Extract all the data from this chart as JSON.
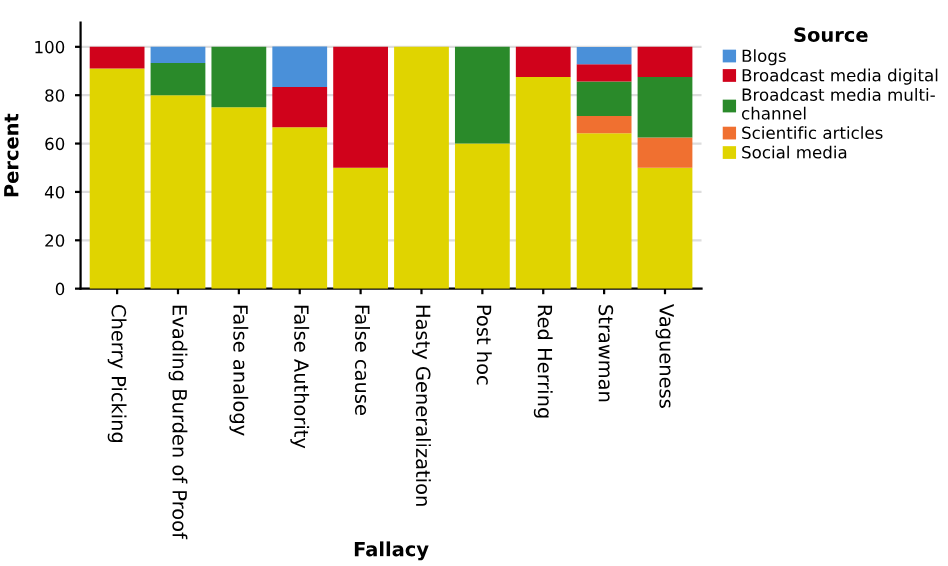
{
  "chart_data": {
    "type": "bar",
    "stacked": true,
    "xlabel": "Fallacy",
    "ylabel": "Percent",
    "legend_title": "Source",
    "legend": "top right",
    "grid": "y",
    "categories": [
      "Cherry Picking",
      "Evading Burden of Proof",
      "False analogy",
      "False Authority",
      "False cause",
      "Hasty Generalization",
      "Post hoc",
      "Red Herring",
      "Strawman",
      "Vagueness"
    ],
    "ylim": [
      0,
      110
    ],
    "yticks": [
      0,
      20,
      40,
      60,
      80,
      100
    ],
    "series": [
      {
        "name": "Social media",
        "color": "#e0d400",
        "values": [
          91,
          80,
          75,
          66.7,
          50,
          100,
          60,
          87.5,
          64.3,
          50
        ]
      },
      {
        "name": "Scientific articles",
        "color": "#f07030",
        "values": [
          0,
          0,
          0,
          0,
          0,
          0,
          0,
          0,
          7.1,
          12.5
        ]
      },
      {
        "name": "Broadcast media multi-channel",
        "color": "#2a8a2a",
        "values": [
          0,
          13.3,
          25,
          0,
          0,
          0,
          40,
          0,
          14.3,
          25
        ]
      },
      {
        "name": "Broadcast media digital",
        "color": "#d0021b",
        "values": [
          9,
          0,
          0,
          16.7,
          50,
          0,
          0,
          12.5,
          7.1,
          12.5
        ]
      },
      {
        "name": "Blogs",
        "color": "#4a90d9",
        "values": [
          0,
          6.7,
          0,
          16.7,
          0,
          0,
          0,
          0,
          7.1,
          0
        ]
      }
    ]
  }
}
